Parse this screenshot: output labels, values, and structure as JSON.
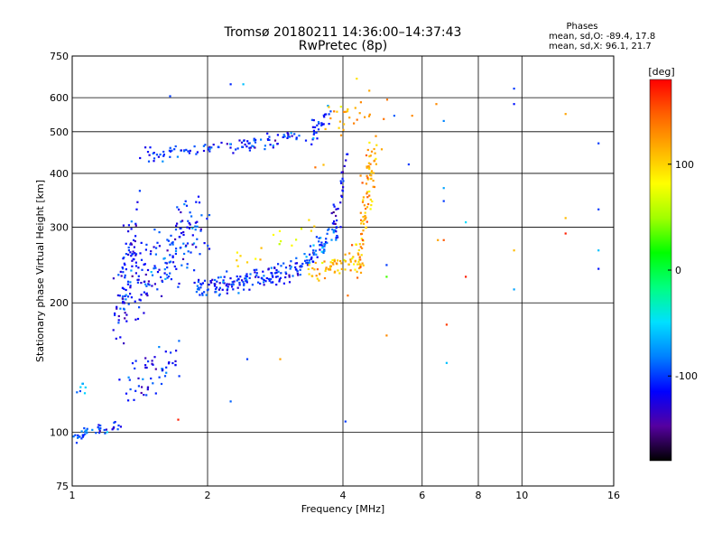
{
  "chart_data": {
    "type": "scatter",
    "title": "Tromsø 20180211 14:36:00–14:37:43",
    "subtitle": "RwPretec (8p)",
    "xlabel": "Frequency [MHz]",
    "ylabel": "Stationary phase Virtual Height [km]",
    "x_scale": "log",
    "y_scale": "log",
    "xlim": [
      1,
      16
    ],
    "ylim": [
      75,
      750
    ],
    "x_ticks": [
      1,
      2,
      4,
      6,
      8,
      10,
      16
    ],
    "x_tick_labels": [
      "1",
      "2",
      "4",
      "6",
      "8",
      "10",
      "16"
    ],
    "y_ticks": [
      75,
      100,
      200,
      300,
      400,
      500,
      600,
      750
    ],
    "y_tick_labels": [
      "75",
      "100",
      "200",
      "300",
      "400",
      "500",
      "600",
      "750"
    ],
    "grid": true,
    "phase_stats": {
      "heading": "Phases",
      "line_o": "mean, sd,O: -89.4, 17.8",
      "line_x": "mean, sd,X:  96.1, 21.7"
    },
    "colorbar": {
      "label": "[deg]",
      "range": [
        -180,
        180
      ],
      "ticks": [
        100,
        0,
        -100
      ],
      "tick_labels": [
        "100",
        "0",
        "-100"
      ],
      "colors": [
        "#000000",
        "#5500a0",
        "#0000ff",
        "#0080ff",
        "#00e0ff",
        "#00ff80",
        "#00ff00",
        "#a0ff00",
        "#ffff00",
        "#ffb000",
        "#ff6000",
        "#ff0000"
      ]
    },
    "series": [
      {
        "traces": [
          {
            "x": [
              1.0,
              1.28
            ],
            "y": [
              98,
              104
            ],
            "phase": -100,
            "n": 45,
            "sx": 0.01,
            "sy": 0.015
          },
          {
            "x": [
              1.0,
              1.1
            ],
            "y": [
              125,
              125
            ],
            "phase": -80,
            "n": 8,
            "sx": 0.01,
            "sy": 0.03
          },
          {
            "x": [
              1.33,
              1.75
            ],
            "y": [
              130,
              150
            ],
            "phase": -110,
            "n": 55,
            "sx": 0.03,
            "sy": 0.06
          },
          {
            "x": [
              1.25,
              1.38
            ],
            "y": [
              180,
              300
            ],
            "phase": -115,
            "n": 80,
            "sx": 0.015,
            "sy": 0.1
          },
          {
            "x": [
              1.35,
              1.9
            ],
            "y": [
              215,
              300
            ],
            "phase": -105,
            "n": 170,
            "sx": 0.035,
            "sy": 0.09
          },
          {
            "x": [
              1.9,
              3.2
            ],
            "y": [
              215,
              240
            ],
            "phase": -105,
            "n": 160,
            "sx": 0.012,
            "sy": 0.03
          },
          {
            "x": [
              3.2,
              3.9
            ],
            "y": [
              240,
              300
            ],
            "phase": -95,
            "n": 70,
            "sx": 0.012,
            "sy": 0.03
          },
          {
            "x": [
              3.8,
              4.05
            ],
            "y": [
              300,
              420
            ],
            "phase": -120,
            "n": 30,
            "sx": 0.008,
            "sy": 0.05
          },
          {
            "x": [
              3.4,
              4.4
            ],
            "y": [
              235,
              255
            ],
            "phase": 110,
            "n": 70,
            "sx": 0.015,
            "sy": 0.025
          },
          {
            "x": [
              4.3,
              4.7
            ],
            "y": [
              250,
              470
            ],
            "phase": 120,
            "n": 90,
            "sx": 0.015,
            "sy": 0.06
          },
          {
            "x": [
              2.3,
              3.4
            ],
            "y": [
              250,
              300
            ],
            "phase": 90,
            "n": 18,
            "sx": 0.02,
            "sy": 0.04
          },
          {
            "x": [
              1.45,
              3.4
            ],
            "y": [
              440,
              490
            ],
            "phase": -105,
            "n": 110,
            "sx": 0.02,
            "sy": 0.02
          },
          {
            "x": [
              3.4,
              3.7
            ],
            "y": [
              490,
              560
            ],
            "phase": -110,
            "n": 28,
            "sx": 0.01,
            "sy": 0.03
          },
          {
            "x": [
              3.6,
              4.7
            ],
            "y": [
              500,
              585
            ],
            "phase": 120,
            "n": 22,
            "sx": 0.02,
            "sy": 0.04
          },
          {
            "x": [
              3.3,
              4.9
            ],
            "y": [
              380,
              560
            ],
            "phase": 130,
            "n": 10,
            "sx": 0.08,
            "sy": 0.12
          }
        ],
        "points": [
          {
            "x": 1.65,
            "y": 605,
            "phase": -100
          },
          {
            "x": 2.25,
            "y": 645,
            "phase": -105
          },
          {
            "x": 2.4,
            "y": 645,
            "phase": -60
          },
          {
            "x": 6.45,
            "y": 580,
            "phase": 130
          },
          {
            "x": 6.7,
            "y": 530,
            "phase": -80
          },
          {
            "x": 6.7,
            "y": 370,
            "phase": -70
          },
          {
            "x": 6.7,
            "y": 345,
            "phase": -100
          },
          {
            "x": 6.7,
            "y": 280,
            "phase": 150
          },
          {
            "x": 6.5,
            "y": 280,
            "phase": 120
          },
          {
            "x": 7.5,
            "y": 308,
            "phase": -50
          },
          {
            "x": 7.5,
            "y": 230,
            "phase": 170
          },
          {
            "x": 9.6,
            "y": 630,
            "phase": -100
          },
          {
            "x": 9.6,
            "y": 580,
            "phase": -110
          },
          {
            "x": 9.6,
            "y": 265,
            "phase": 110
          },
          {
            "x": 9.6,
            "y": 215,
            "phase": -70
          },
          {
            "x": 12.5,
            "y": 550,
            "phase": 120
          },
          {
            "x": 12.5,
            "y": 315,
            "phase": 110
          },
          {
            "x": 12.5,
            "y": 290,
            "phase": 170
          },
          {
            "x": 14.8,
            "y": 470,
            "phase": -100
          },
          {
            "x": 14.8,
            "y": 330,
            "phase": -100
          },
          {
            "x": 14.8,
            "y": 265,
            "phase": -60
          },
          {
            "x": 14.8,
            "y": 240,
            "phase": -110
          },
          {
            "x": 5.6,
            "y": 420,
            "phase": -100
          },
          {
            "x": 5.7,
            "y": 545,
            "phase": 130
          },
          {
            "x": 5.2,
            "y": 545,
            "phase": -90
          },
          {
            "x": 5.0,
            "y": 245,
            "phase": -100
          },
          {
            "x": 5.0,
            "y": 230,
            "phase": 30
          },
          {
            "x": 5.0,
            "y": 168,
            "phase": 130
          },
          {
            "x": 6.8,
            "y": 178,
            "phase": 160
          },
          {
            "x": 6.8,
            "y": 145,
            "phase": -60
          },
          {
            "x": 4.1,
            "y": 208,
            "phase": 140
          },
          {
            "x": 4.05,
            "y": 106,
            "phase": -100
          },
          {
            "x": 2.9,
            "y": 148,
            "phase": 120
          },
          {
            "x": 2.45,
            "y": 148,
            "phase": -100
          },
          {
            "x": 2.25,
            "y": 118,
            "phase": -90
          },
          {
            "x": 1.72,
            "y": 107,
            "phase": 170
          }
        ]
      }
    ]
  }
}
